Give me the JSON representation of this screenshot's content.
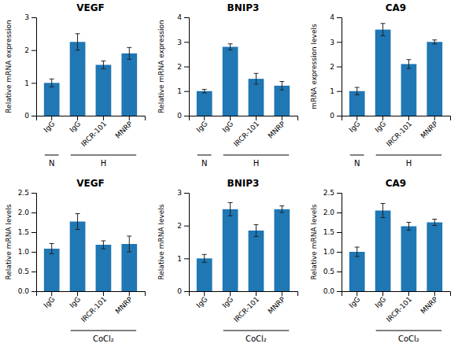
{
  "chart_data": [
    {
      "type": "bar",
      "title": "VEGF",
      "ylabel": "Relative mRNA expression",
      "categories": [
        "IgG",
        "IgG",
        "IRCR-101",
        "MNRP"
      ],
      "values": [
        1.0,
        2.25,
        1.55,
        1.9
      ],
      "errors": [
        0.12,
        0.25,
        0.12,
        0.18
      ],
      "ylim": [
        0,
        3
      ],
      "yticks": [
        0,
        1,
        2,
        3
      ],
      "grid": false,
      "annotations": [
        {
          "text": "N",
          "start": 0,
          "end": 0
        },
        {
          "text": "H",
          "start": 1,
          "end": 3
        }
      ]
    },
    {
      "type": "bar",
      "title": "BNIP3",
      "ylabel": "Relative mRNA expression",
      "categories": [
        "IgG",
        "IgG",
        "IRCR-101",
        "MNRP"
      ],
      "values": [
        1.0,
        2.8,
        1.5,
        1.22
      ],
      "errors": [
        0.07,
        0.12,
        0.22,
        0.17
      ],
      "ylim": [
        0,
        4
      ],
      "yticks": [
        0,
        1,
        2,
        3,
        4
      ],
      "grid": false,
      "annotations": [
        {
          "text": "N",
          "start": 0,
          "end": 0
        },
        {
          "text": "H",
          "start": 1,
          "end": 3
        }
      ]
    },
    {
      "type": "bar",
      "title": "CA9",
      "ylabel": "mRNA expression levels",
      "categories": [
        "IgG",
        "IgG",
        "IRCR-101",
        "MNRP"
      ],
      "values": [
        1.0,
        3.5,
        2.1,
        3.0
      ],
      "errors": [
        0.15,
        0.25,
        0.18,
        0.08
      ],
      "ylim": [
        0,
        4
      ],
      "yticks": [
        0,
        1,
        2,
        3,
        4
      ],
      "grid": false,
      "annotations": [
        {
          "text": "N",
          "start": 0,
          "end": 0
        },
        {
          "text": "H",
          "start": 1,
          "end": 3
        }
      ]
    },
    {
      "type": "bar",
      "title": "VEGF",
      "ylabel": "Relative mRNA levels",
      "categories": [
        "IgG",
        "IgG",
        "IRCR-101",
        "MNRP"
      ],
      "values": [
        1.08,
        1.77,
        1.18,
        1.2
      ],
      "errors": [
        0.13,
        0.2,
        0.1,
        0.2
      ],
      "ylim": [
        0,
        2.5
      ],
      "yticks": [
        {
          "value": 0,
          "label": "0.0"
        },
        0.5,
        {
          "value": 1.0,
          "label": "1.0"
        },
        1.5,
        {
          "value": 2.0,
          "label": "2.0"
        },
        2.5
      ],
      "grid": false,
      "annotations": [
        {
          "text": "CoCl₂",
          "start": 1,
          "end": 3
        }
      ]
    },
    {
      "type": "bar",
      "title": "BNIP3",
      "ylabel": "Relative mRNA levels",
      "categories": [
        "IgG",
        "IgG",
        "IRCR-101",
        "MNRP"
      ],
      "values": [
        1.0,
        2.5,
        1.85,
        2.5
      ],
      "errors": [
        0.12,
        0.2,
        0.18,
        0.1
      ],
      "ylim": [
        0,
        3
      ],
      "yticks": [
        0,
        1,
        2,
        3
      ],
      "grid": false,
      "annotations": [
        {
          "text": "CoCl₂",
          "start": 1,
          "end": 3
        }
      ]
    },
    {
      "type": "bar",
      "title": "CA9",
      "ylabel": "Relative mRNA levels",
      "categories": [
        "IgG",
        "IgG",
        "IRCR-101",
        "MNRP"
      ],
      "values": [
        1.0,
        2.05,
        1.65,
        1.75
      ],
      "errors": [
        0.12,
        0.18,
        0.1,
        0.08
      ],
      "ylim": [
        0,
        2.5
      ],
      "yticks": [
        {
          "value": 0,
          "label": "0.0"
        },
        0.5,
        {
          "value": 1.0,
          "label": "1.0"
        },
        1.5,
        {
          "value": 2.0,
          "label": "2.0"
        },
        2.5
      ],
      "grid": false,
      "annotations": [
        {
          "text": "CoCl₂",
          "start": 1,
          "end": 3
        }
      ]
    }
  ]
}
